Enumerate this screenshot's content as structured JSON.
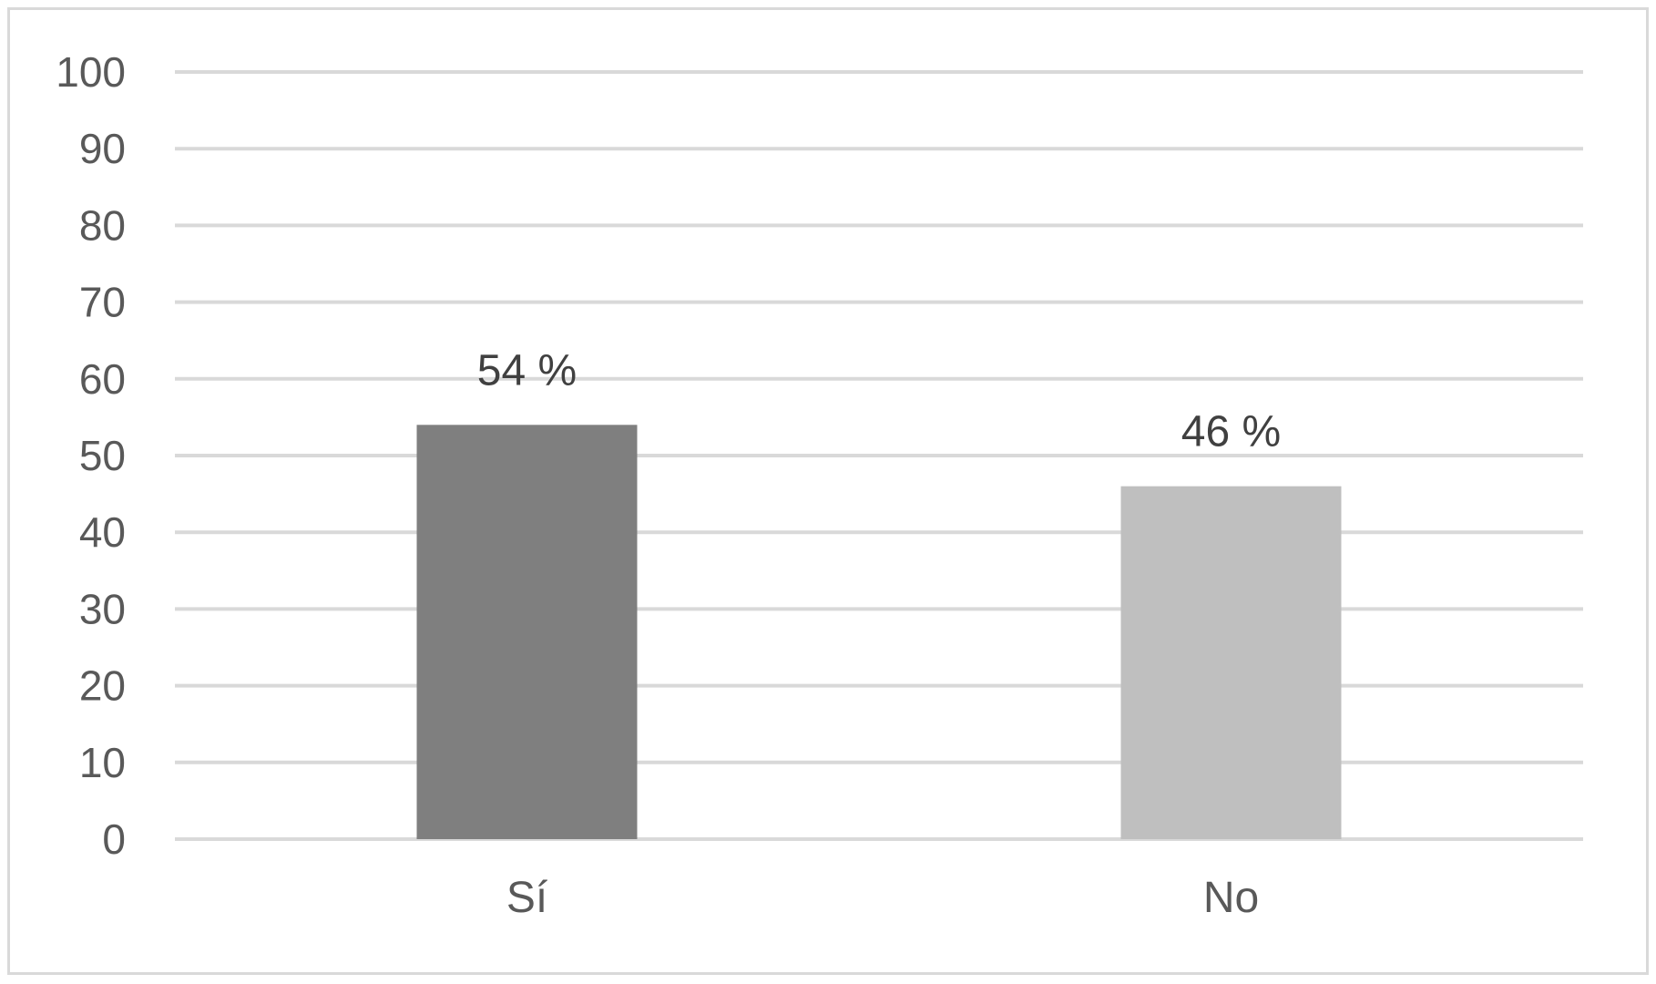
{
  "chart_data": {
    "type": "bar",
    "categories": [
      "Sí",
      "No"
    ],
    "values": [
      54,
      46
    ],
    "data_labels": [
      "54 %",
      "46 %"
    ],
    "title": "",
    "xlabel": "",
    "ylabel": "",
    "ylim": [
      0,
      100
    ],
    "yticks": [
      0,
      10,
      20,
      30,
      40,
      50,
      60,
      70,
      80,
      90,
      100
    ],
    "ytick_labels": [
      "0",
      "10",
      "20",
      "30",
      "40",
      "50",
      "60",
      "70",
      "80",
      "90",
      "100"
    ],
    "grid": true,
    "legend": "none",
    "bar_colors": [
      "#7f7f7f",
      "#bfbfbf"
    ],
    "gridline_color": "#d9d9d9",
    "axis_text_color": "#595959",
    "data_label_color": "#404040"
  }
}
